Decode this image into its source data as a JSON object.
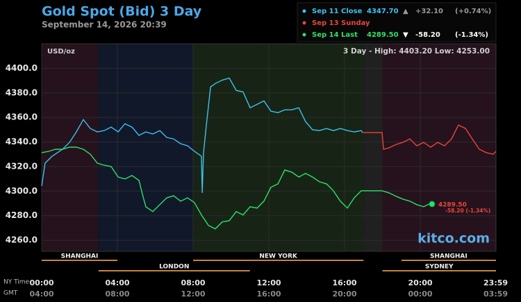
{
  "chart_data": {
    "type": "line",
    "title": "Gold Spot (Bid) 3 Day",
    "subtitle": "September 14, 2026 20:39",
    "unit_label": "USD/oz",
    "range_label": "3 Day - High: 4403.20  Low: 4253.00",
    "watermark": "kitco.com",
    "x_axis_labels": [
      "NY Time",
      "GMT"
    ],
    "xlim": [
      0,
      24
    ],
    "ylim": [
      4251,
      4420
    ],
    "yticks": [
      {
        "value": 4260,
        "label": "4260.0"
      },
      {
        "value": 4280,
        "label": "4280.0"
      },
      {
        "value": 4300,
        "label": "4300.0"
      },
      {
        "value": 4320,
        "label": "4320.0"
      },
      {
        "value": 4340,
        "label": "4340.0"
      },
      {
        "value": 4360,
        "label": "4360.0"
      },
      {
        "value": 4380,
        "label": "4380.0"
      },
      {
        "value": 4400,
        "label": "4400.0"
      }
    ],
    "xticks": [
      {
        "value": 0,
        "label": "00:00"
      },
      {
        "value": 4,
        "label": "04:00"
      },
      {
        "value": 8,
        "label": "08:00"
      },
      {
        "value": 12,
        "label": "12:00"
      },
      {
        "value": 16,
        "label": "16:00"
      },
      {
        "value": 20,
        "label": "20:00"
      },
      {
        "value": 23.983,
        "label": "23:59"
      }
    ],
    "xticks_gmt": [
      {
        "value": 0,
        "label": "04:00"
      },
      {
        "value": 4,
        "label": "08:00"
      },
      {
        "value": 8,
        "label": "12:00"
      },
      {
        "value": 12,
        "label": "16:00"
      },
      {
        "value": 16,
        "label": "20:00"
      },
      {
        "value": 20,
        "label": "00:00"
      },
      {
        "value": 23.983,
        "label": "03:59"
      }
    ],
    "grid": true,
    "shading": [
      {
        "start": 0,
        "end": 3,
        "color": "#25121c"
      },
      {
        "start": 3,
        "end": 8,
        "color": "#11182a"
      },
      {
        "start": 8,
        "end": 17,
        "color": "#172415"
      },
      {
        "start": 17,
        "end": 18,
        "color": "#202020"
      },
      {
        "start": 18,
        "end": 24,
        "color": "#25121c"
      }
    ],
    "sessions": [
      [
        {
          "label": "SHANGHAI",
          "start": 0,
          "end": 4
        },
        {
          "label": "NEW YORK",
          "start": 8,
          "end": 17
        },
        {
          "label": "SHANGHAI",
          "start": 19,
          "end": 24
        }
      ],
      [
        {
          "label": "LONDON",
          "start": 3,
          "end": 11
        },
        {
          "label": "SYDNEY",
          "start": 18,
          "end": 24
        }
      ]
    ],
    "series": [
      {
        "name": "Sep 11 Close",
        "color": "#3ec1f0",
        "legend_text": [
          "4347.70",
          "▲",
          "+32.10",
          "(+0.74%)"
        ],
        "x": [
          0,
          0.18,
          0.55,
          1.1,
          1.47,
          1.83,
          2.2,
          2.57,
          2.94,
          3.3,
          3.67,
          4.04,
          4.4,
          4.77,
          5.14,
          5.5,
          5.87,
          6.24,
          6.61,
          6.97,
          7.34,
          7.71,
          8.07,
          8.44,
          8.48,
          8.55,
          8.7,
          8.92,
          9.17,
          9.54,
          9.91,
          10.28,
          10.64,
          11.01,
          11.38,
          11.74,
          12.11,
          12.48,
          12.84,
          13.21,
          13.58,
          13.94,
          14.31,
          14.68,
          15.05,
          15.41,
          15.78,
          16.15,
          16.51,
          16.88,
          16.95
        ],
        "values": [
          4304.2,
          4322.8,
          4328.4,
          4334.1,
          4339.7,
          4348.2,
          4358.3,
          4351.0,
          4348.2,
          4349.3,
          4352.1,
          4348.2,
          4354.9,
          4352.1,
          4345.4,
          4348.2,
          4346.5,
          4349.3,
          4343.7,
          4342.5,
          4338.6,
          4336.9,
          4332.4,
          4328.4,
          4298.6,
          4331.3,
          4353.8,
          4384.8,
          4387.6,
          4390.4,
          4392.1,
          4382.0,
          4380.8,
          4367.9,
          4370.7,
          4373.5,
          4365.1,
          4363.9,
          4366.2,
          4366.2,
          4367.9,
          4356.6,
          4349.9,
          4349.3,
          4351.0,
          4349.3,
          4351.0,
          4349.3,
          4348.2,
          4349.3,
          4347.7
        ]
      },
      {
        "name": "Sep 13 Sunday",
        "color": "#e8453c",
        "x": [
          16.95,
          17.98,
          18.06,
          18.35,
          18.72,
          19.08,
          19.45,
          19.82,
          20.18,
          20.55,
          20.92,
          21.28,
          21.65,
          22.02,
          22.39,
          22.75,
          23.12,
          23.49,
          23.85,
          24.0
        ],
        "values": [
          4347.7,
          4347.7,
          4334.1,
          4335.2,
          4338.0,
          4339.7,
          4342.5,
          4336.9,
          4339.7,
          4335.8,
          4339.7,
          4336.9,
          4342.5,
          4353.8,
          4351.0,
          4342.5,
          4334.1,
          4331.3,
          4330.1,
          4332.4
        ]
      },
      {
        "name": "Sep 14 Last",
        "color": "#2ee06a",
        "legend_text": [
          "4289.50",
          "▼",
          "-58.20",
          "(-1.34%)"
        ],
        "last_labels": [
          "4289.50",
          "-58.20 (-1.34%)"
        ],
        "x": [
          0,
          0.37,
          0.73,
          1.1,
          1.47,
          1.83,
          2.2,
          2.57,
          2.94,
          3.3,
          3.67,
          4.04,
          4.4,
          4.77,
          5.14,
          5.32,
          5.5,
          5.87,
          6.24,
          6.61,
          6.97,
          7.34,
          7.71,
          8.07,
          8.44,
          8.81,
          9.17,
          9.54,
          9.91,
          10.28,
          10.64,
          11.01,
          11.38,
          11.74,
          12.11,
          12.48,
          12.84,
          13.21,
          13.58,
          13.94,
          14.31,
          14.68,
          15.05,
          15.41,
          15.78,
          16.15,
          16.51,
          16.88,
          17.25,
          17.61,
          17.98,
          18.35,
          18.72,
          19.08,
          19.45,
          19.82,
          20.18,
          20.55,
          20.62
        ],
        "values": [
          4331.3,
          4332.4,
          4334.1,
          4334.1,
          4335.8,
          4335.8,
          4334.1,
          4330.1,
          4322.8,
          4321.1,
          4320.0,
          4311.5,
          4309.9,
          4312.7,
          4308.7,
          4297.5,
          4287.3,
          4283.4,
          4289.0,
          4294.6,
          4296.3,
          4291.8,
          4294.6,
          4290.7,
          4280.6,
          4272.1,
          4269.3,
          4274.9,
          4276.0,
          4283.4,
          4280.6,
          4287.3,
          4286.2,
          4291.8,
          4303.1,
          4305.9,
          4317.2,
          4315.5,
          4311.5,
          4314.4,
          4311.5,
          4307.6,
          4305.9,
          4300.3,
          4291.8,
          4286.2,
          4294.6,
          4300.3,
          4300.3,
          4300.3,
          4300.3,
          4298.6,
          4295.8,
          4293.5,
          4291.8,
          4289.0,
          4287.3,
          4290.1,
          4289.5
        ]
      }
    ]
  }
}
